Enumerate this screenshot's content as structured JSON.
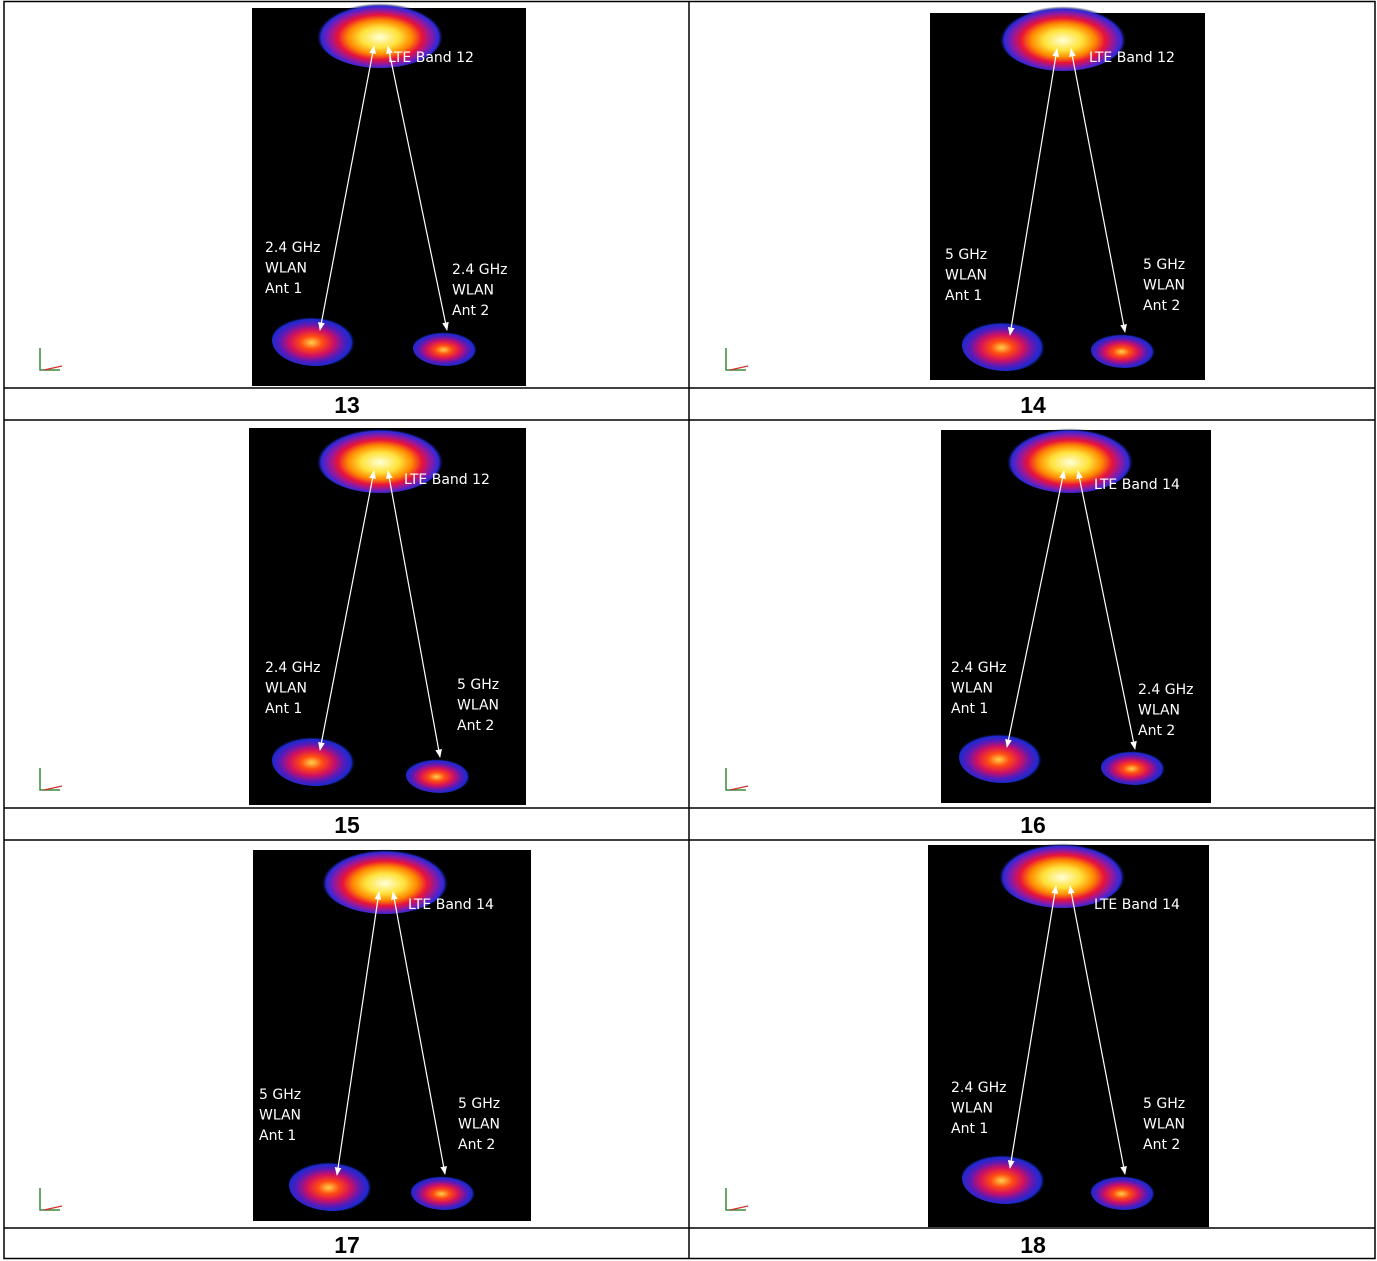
{
  "cells": [
    {
      "number": "13",
      "top_label": "LTE Band 12",
      "ant1_label": [
        "2.4 GHz",
        "WLAN",
        "Ant 1"
      ],
      "ant2_label": [
        "2.4 GHz",
        "WLAN",
        "Ant 2"
      ]
    },
    {
      "number": "14",
      "top_label": "LTE Band 12",
      "ant1_label": [
        "5 GHz",
        "WLAN",
        "Ant 1"
      ],
      "ant2_label": [
        "5 GHz",
        "WLAN",
        "Ant 2"
      ]
    },
    {
      "number": "15",
      "top_label": "LTE Band 12",
      "ant1_label": [
        "2.4 GHz",
        "WLAN",
        "Ant 1"
      ],
      "ant2_label": [
        "5 GHz",
        "WLAN",
        "Ant 2"
      ]
    },
    {
      "number": "16",
      "top_label": "LTE Band 14",
      "ant1_label": [
        "2.4 GHz",
        "WLAN",
        "Ant 1"
      ],
      "ant2_label": [
        "2.4 GHz",
        "WLAN",
        "Ant 2"
      ]
    },
    {
      "number": "17",
      "top_label": "LTE Band 14",
      "ant1_label": [
        "5 GHz",
        "WLAN",
        "Ant 1"
      ],
      "ant2_label": [
        "5 GHz",
        "WLAN",
        "Ant 2"
      ]
    },
    {
      "number": "18",
      "top_label": "LTE Band 14",
      "ant1_label": [
        "2.4 GHz",
        "WLAN",
        "Ant 1"
      ],
      "ant2_label": [
        "5 GHz",
        "WLAN",
        "Ant 2"
      ]
    }
  ]
}
